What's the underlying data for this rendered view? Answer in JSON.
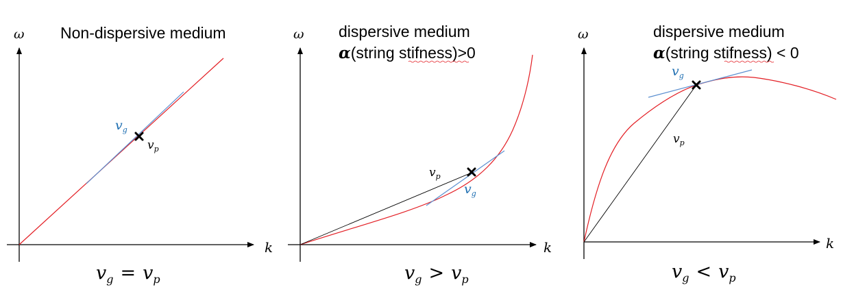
{
  "panels": [
    {
      "title_lines": [
        "Non-dispersive medium"
      ],
      "x_axis_label": "k",
      "y_axis_label": "ω",
      "group_velocity_label": "v",
      "group_velocity_sub": "g",
      "phase_velocity_label": "v",
      "phase_velocity_sub": "p",
      "relation_left": "v",
      "relation_left_sub": "g",
      "relation_op": "=",
      "relation_right": "v",
      "relation_right_sub": "p"
    },
    {
      "title_lines": [
        "dispersive medium"
      ],
      "title_alpha_symbol": "α",
      "title_alpha_text": "(string stifness)>0",
      "x_axis_label": "k",
      "y_axis_label": "ω",
      "group_velocity_label": "v",
      "group_velocity_sub": "g",
      "phase_velocity_label": "v",
      "phase_velocity_sub": "p",
      "relation_left": "v",
      "relation_left_sub": "g",
      "relation_op": ">",
      "relation_right": "v",
      "relation_right_sub": "p"
    },
    {
      "title_lines": [
        "dispersive medium"
      ],
      "title_alpha_symbol": "α",
      "title_alpha_text": "(string stifness) < 0",
      "x_axis_label": "k",
      "y_axis_label": "ω",
      "group_velocity_label": "v",
      "group_velocity_sub": "g",
      "phase_velocity_label": "v",
      "phase_velocity_sub": "p",
      "relation_left": "v",
      "relation_left_sub": "g",
      "relation_op": "<",
      "relation_right": "v",
      "relation_right_sub": "p"
    }
  ],
  "colors": {
    "dispersion_curve": "#e31e24",
    "tangent_line": "#5b8fd0",
    "group_velocity_label": "#1f6fb2",
    "axes": "#000000"
  }
}
